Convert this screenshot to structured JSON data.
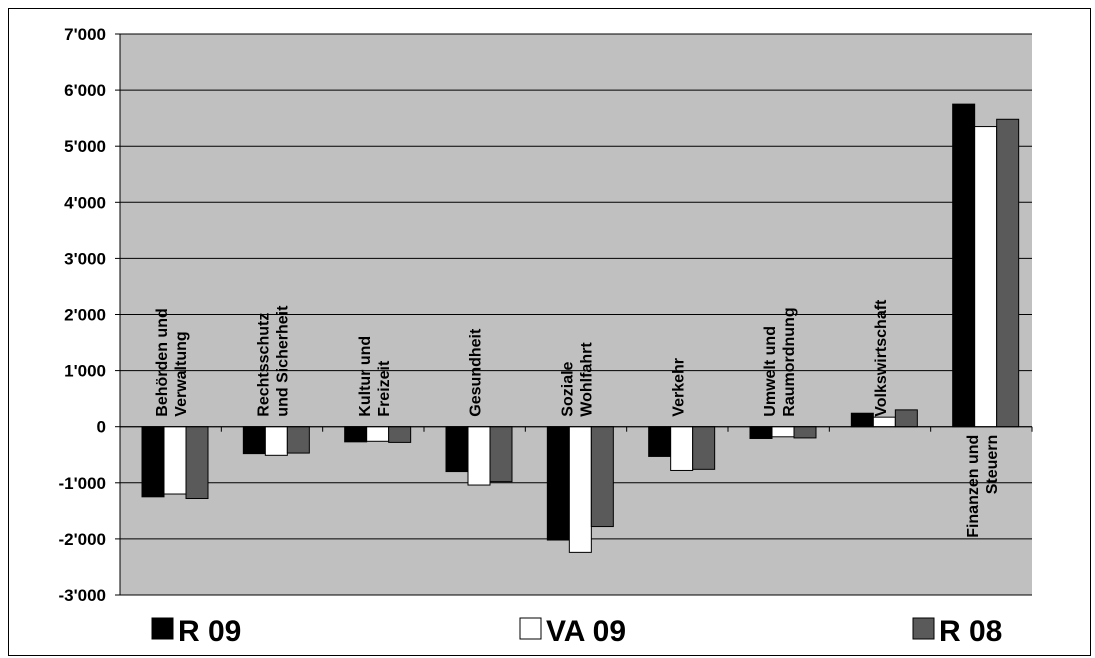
{
  "chart_data": {
    "type": "bar",
    "title": "",
    "xlabel": "",
    "ylabel": "",
    "ylim": [
      -3000,
      7000
    ],
    "grid": true,
    "legend_position": "bottom",
    "y_ticks": [
      "7'000",
      "6'000",
      "5'000",
      "4'000",
      "3'000",
      "2'000",
      "1'000",
      "0",
      "-1'000",
      "-2'000",
      "-3'000"
    ],
    "y_tick_values": [
      7000,
      6000,
      5000,
      4000,
      3000,
      2000,
      1000,
      0,
      -1000,
      -2000,
      -3000
    ],
    "categories": [
      [
        "Behörden und",
        "Verwaltung"
      ],
      [
        "Rechtsschutz",
        "und Sicherheit"
      ],
      [
        "Kultur und",
        "Freizeit"
      ],
      [
        "Gesundheit"
      ],
      [
        "Soziale",
        "Wohlfahrt"
      ],
      [
        "Verkehr"
      ],
      [
        "Umwelt und",
        "Raumordnung"
      ],
      [
        "Volkswirtschaft"
      ],
      [
        "Finanzen und",
        "Steuern"
      ]
    ],
    "series": [
      {
        "name": "R 09",
        "color": "#000000",
        "values": [
          -1250,
          -480,
          -270,
          -800,
          -2020,
          -530,
          -210,
          240,
          5750
        ]
      },
      {
        "name": "VA 09",
        "color": "#ffffff",
        "values": [
          -1200,
          -510,
          -260,
          -1040,
          -2240,
          -780,
          -180,
          170,
          5350
        ]
      },
      {
        "name": "R 08",
        "color": "#5a5a5a",
        "values": [
          -1280,
          -470,
          -280,
          -980,
          -1780,
          -760,
          -200,
          300,
          5480
        ]
      }
    ],
    "plot_bg": "#c0c0c0"
  }
}
